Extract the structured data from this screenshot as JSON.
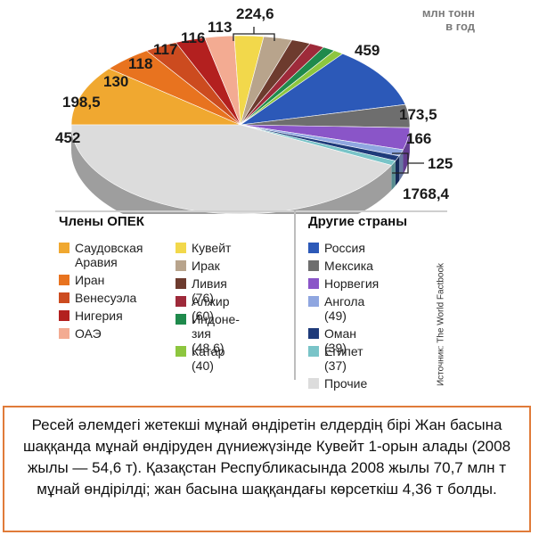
{
  "unit": [
    "млн тонн",
    "в год"
  ],
  "chart_data": {
    "type": "pie",
    "unit": "млн тонн в год",
    "slices": [
      {
        "label": "Саудовская Аравия",
        "value": 452,
        "color": "#f0a830",
        "group": "Члены ОПЕК"
      },
      {
        "label": "Иран",
        "value": 198.5,
        "color": "#e8731f",
        "group": "Члены ОПЕК"
      },
      {
        "label": "Венесуэла",
        "value": 130,
        "color": "#cc4b1f",
        "group": "Члены ОПЕК"
      },
      {
        "label": "Нигерия",
        "value": 118,
        "color": "#b3201f",
        "group": "Члены ОПЕК"
      },
      {
        "label": "ОАЭ",
        "value": 117,
        "color": "#f3ab92",
        "group": "Члены ОПЕК"
      },
      {
        "label": "Кувейт",
        "value": 116,
        "color": "#f2d84b",
        "group": "Члены ОПЕК"
      },
      {
        "label": "Ирак",
        "value": 113,
        "color": "#b8a48c",
        "group": "Члены ОПЕК"
      },
      {
        "label": "Ливия",
        "value": 76,
        "color": "#6d3b2e",
        "group": "Члены ОПЕК"
      },
      {
        "label": "Алжир",
        "value": 60,
        "color": "#9e2a3a",
        "group": "Члены ОПЕК"
      },
      {
        "label": "Индонезия",
        "value": 48.6,
        "color": "#1f8a4c",
        "group": "Члены ОПЕК"
      },
      {
        "label": "Катар",
        "value": 40,
        "color": "#8dc63f",
        "group": "Члены ОПЕК"
      },
      {
        "label": "Россия",
        "value": 459,
        "color": "#2c59b8",
        "group": "Другие страны"
      },
      {
        "label": "Мексика",
        "value": 173.5,
        "color": "#6e6e6e",
        "group": "Другие страны"
      },
      {
        "label": "Норвегия",
        "value": 166,
        "color": "#8a55c8",
        "group": "Другие страны"
      },
      {
        "label": "Ангола",
        "value": 49,
        "color": "#8fa6e0",
        "group": "Другие страны"
      },
      {
        "label": "Оман",
        "value": 39,
        "color": "#1f3b7a",
        "group": "Другие страны"
      },
      {
        "label": "Египет",
        "value": 37,
        "color": "#79c4c8",
        "group": "Другие страны"
      },
      {
        "label": "Прочие",
        "value": 1768.4,
        "color": "#dcdcdc",
        "group": "Другие страны"
      }
    ],
    "value_labels": [
      "452",
      "198,5",
      "130",
      "118",
      "117",
      "116",
      "113",
      "224,6",
      "459",
      "173,5",
      "166",
      "125",
      "1768,4"
    ]
  },
  "legend": {
    "opec_title": "Члены ОПЕК",
    "others_title": "Другие страны",
    "opec_col1": [
      {
        "text": "Саудовская Аравия",
        "color": "#f0a830"
      },
      {
        "text": "Иран",
        "color": "#e8731f"
      },
      {
        "text": "Венесуэла",
        "color": "#cc4b1f"
      },
      {
        "text": "Нигерия",
        "color": "#b3201f"
      },
      {
        "text": "ОАЭ",
        "color": "#f3ab92"
      }
    ],
    "opec_col2": [
      {
        "text": "Кувейт",
        "color": "#f2d84b"
      },
      {
        "text": "Ирак",
        "color": "#b8a48c"
      },
      {
        "text": "Ливия (76)",
        "color": "#6d3b2e"
      },
      {
        "text": "Алжир (60)",
        "color": "#9e2a3a"
      },
      {
        "text": "Индоне-зия (48,6)",
        "color": "#1f8a4c"
      },
      {
        "text": "Катар (40)",
        "color": "#8dc63f"
      }
    ],
    "others": [
      {
        "text": "Россия",
        "color": "#2c59b8"
      },
      {
        "text": "Мексика",
        "color": "#6e6e6e"
      },
      {
        "text": "Норвегия",
        "color": "#8a55c8"
      },
      {
        "text": "Ангола (49)",
        "color": "#8fa6e0"
      },
      {
        "text": "Оман (39)",
        "color": "#1f3b7a"
      },
      {
        "text": "Египет (37)",
        "color": "#79c4c8"
      },
      {
        "text": "Прочие",
        "color": "#dcdcdc"
      }
    ]
  },
  "source": "Источник: The World Factbook",
  "caption": "Ресей әлемдегі жетекші мұнай өндіретін елдердің бірі Жан басына шаққанда мұнай өндіруден дүниежүзінде Кувейт 1-орын алады (2008 жылы — 54,6 т). Қазақстан Республикасында 2008 жылы 70,7 млн т мұнай өндірілді; жан басына шаққандағы көрсеткіш 4,36 т болды."
}
